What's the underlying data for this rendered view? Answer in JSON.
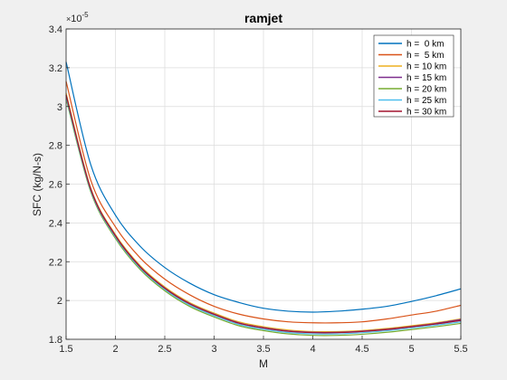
{
  "chart_data": {
    "type": "line",
    "title": "ramjet",
    "xlabel": "M",
    "ylabel": "SFC (kg/N-s)",
    "y_exponent_base": "10",
    "y_exponent_power": "-5",
    "xlim": [
      1.5,
      5.5
    ],
    "ylim": [
      1.8,
      3.4
    ],
    "grid": true,
    "legend_position": "top-right",
    "xticks": [
      1.5,
      2,
      2.5,
      3,
      3.5,
      4,
      4.5,
      5,
      5.5
    ],
    "xtick_labels": [
      "1.5",
      "2",
      "2.5",
      "3",
      "3.5",
      "4",
      "4.5",
      "5",
      "5.5"
    ],
    "yticks": [
      1.8,
      2.0,
      2.2,
      2.4,
      2.6,
      2.8,
      3.0,
      3.2,
      3.4
    ],
    "ytick_labels": [
      "1.8",
      "2",
      "2.2",
      "2.4",
      "2.6",
      "2.8",
      "3",
      "3.2",
      "3.4"
    ],
    "x": [
      1.5,
      1.75,
      2.0,
      2.25,
      2.5,
      2.75,
      3.0,
      3.25,
      3.5,
      3.75,
      4.0,
      4.25,
      4.5,
      4.75,
      5.0,
      5.25,
      5.5
    ],
    "series": [
      {
        "name": "h =  0 km",
        "color": "#0072bd",
        "values": [
          3.23,
          2.7,
          2.44,
          2.28,
          2.17,
          2.09,
          2.03,
          1.99,
          1.96,
          1.945,
          1.94,
          1.945,
          1.955,
          1.97,
          1.995,
          2.025,
          2.06
        ]
      },
      {
        "name": "h =  5 km",
        "color": "#d95319",
        "values": [
          3.13,
          2.62,
          2.38,
          2.22,
          2.11,
          2.03,
          1.97,
          1.93,
          1.905,
          1.89,
          1.885,
          1.885,
          1.89,
          1.905,
          1.925,
          1.945,
          1.975
        ]
      },
      {
        "name": "h = 10 km",
        "color": "#edb120",
        "values": [
          3.07,
          2.58,
          2.34,
          2.18,
          2.07,
          1.99,
          1.935,
          1.89,
          1.865,
          1.848,
          1.84,
          1.84,
          1.845,
          1.856,
          1.87,
          1.885,
          1.905
        ]
      },
      {
        "name": "h = 15 km",
        "color": "#7e2f8e",
        "values": [
          3.06,
          2.575,
          2.335,
          2.175,
          2.065,
          1.985,
          1.93,
          1.885,
          1.86,
          1.843,
          1.836,
          1.836,
          1.842,
          1.852,
          1.866,
          1.882,
          1.902
        ]
      },
      {
        "name": "h = 20 km",
        "color": "#77ac30",
        "values": [
          3.04,
          2.56,
          2.32,
          2.16,
          2.05,
          1.97,
          1.915,
          1.87,
          1.845,
          1.828,
          1.82,
          1.82,
          1.826,
          1.836,
          1.85,
          1.865,
          1.882
        ]
      },
      {
        "name": "h = 25 km",
        "color": "#4dbeee",
        "values": [
          3.05,
          2.567,
          2.327,
          2.167,
          2.057,
          1.977,
          1.922,
          1.877,
          1.852,
          1.835,
          1.828,
          1.828,
          1.834,
          1.844,
          1.858,
          1.873,
          1.89
        ]
      },
      {
        "name": "h = 30 km",
        "color": "#a2142f",
        "values": [
          3.06,
          2.573,
          2.333,
          2.173,
          2.063,
          1.983,
          1.928,
          1.883,
          1.858,
          1.841,
          1.834,
          1.834,
          1.84,
          1.85,
          1.864,
          1.879,
          1.897
        ]
      }
    ]
  }
}
